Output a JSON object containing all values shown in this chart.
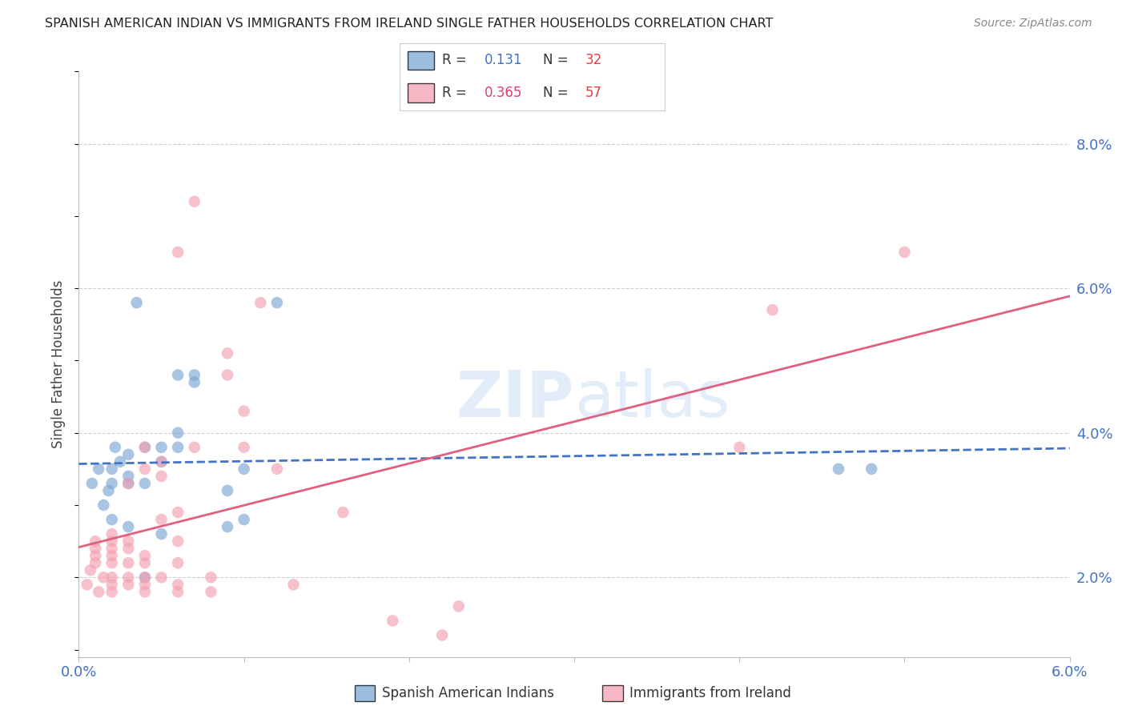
{
  "title": "SPANISH AMERICAN INDIAN VS IMMIGRANTS FROM IRELAND SINGLE FATHER HOUSEHOLDS CORRELATION CHART",
  "source": "Source: ZipAtlas.com",
  "ylabel": "Single Father Households",
  "right_ytick_labels": [
    "2.0%",
    "4.0%",
    "6.0%",
    "8.0%"
  ],
  "right_ytick_values": [
    0.02,
    0.04,
    0.06,
    0.08
  ],
  "xlim": [
    0.0,
    0.06
  ],
  "ylim": [
    0.009,
    0.09
  ],
  "background_color": "#ffffff",
  "grid_color": "#d0d0d0",
  "title_color": "#222222",
  "axis_label_color": "#4472c4",
  "watermark": "ZIPAtlas",
  "series1_label": "Spanish American Indians",
  "series1_color": "#7ba7d4",
  "series1_R": "0.131",
  "series1_N": "32",
  "series2_label": "Immigrants from Ireland",
  "series2_color": "#f4a0b0",
  "series2_R": "0.365",
  "series2_N": "57",
  "series1_x": [
    0.0008,
    0.0012,
    0.0015,
    0.0018,
    0.002,
    0.002,
    0.002,
    0.0022,
    0.0025,
    0.003,
    0.003,
    0.003,
    0.003,
    0.0035,
    0.004,
    0.004,
    0.004,
    0.005,
    0.005,
    0.005,
    0.006,
    0.006,
    0.006,
    0.007,
    0.007,
    0.009,
    0.009,
    0.01,
    0.01,
    0.012,
    0.046,
    0.048
  ],
  "series1_y": [
    0.033,
    0.035,
    0.03,
    0.032,
    0.028,
    0.033,
    0.035,
    0.038,
    0.036,
    0.027,
    0.033,
    0.034,
    0.037,
    0.058,
    0.02,
    0.033,
    0.038,
    0.026,
    0.036,
    0.038,
    0.038,
    0.04,
    0.048,
    0.047,
    0.048,
    0.027,
    0.032,
    0.028,
    0.035,
    0.058,
    0.035,
    0.035
  ],
  "series2_x": [
    0.0005,
    0.0007,
    0.001,
    0.001,
    0.001,
    0.001,
    0.0012,
    0.0015,
    0.002,
    0.002,
    0.002,
    0.002,
    0.002,
    0.002,
    0.002,
    0.002,
    0.003,
    0.003,
    0.003,
    0.003,
    0.003,
    0.003,
    0.004,
    0.004,
    0.004,
    0.004,
    0.004,
    0.004,
    0.004,
    0.005,
    0.005,
    0.005,
    0.005,
    0.006,
    0.006,
    0.006,
    0.006,
    0.006,
    0.006,
    0.007,
    0.007,
    0.008,
    0.008,
    0.009,
    0.009,
    0.01,
    0.01,
    0.011,
    0.012,
    0.013,
    0.016,
    0.019,
    0.022,
    0.023,
    0.04,
    0.042,
    0.05
  ],
  "series2_y": [
    0.019,
    0.021,
    0.022,
    0.023,
    0.024,
    0.025,
    0.018,
    0.02,
    0.018,
    0.019,
    0.02,
    0.022,
    0.023,
    0.024,
    0.025,
    0.026,
    0.019,
    0.02,
    0.022,
    0.024,
    0.025,
    0.033,
    0.018,
    0.019,
    0.02,
    0.022,
    0.023,
    0.035,
    0.038,
    0.02,
    0.028,
    0.034,
    0.036,
    0.018,
    0.019,
    0.022,
    0.025,
    0.029,
    0.065,
    0.038,
    0.072,
    0.018,
    0.02,
    0.048,
    0.051,
    0.038,
    0.043,
    0.058,
    0.035,
    0.019,
    0.029,
    0.014,
    0.012,
    0.016,
    0.038,
    0.057,
    0.065
  ]
}
